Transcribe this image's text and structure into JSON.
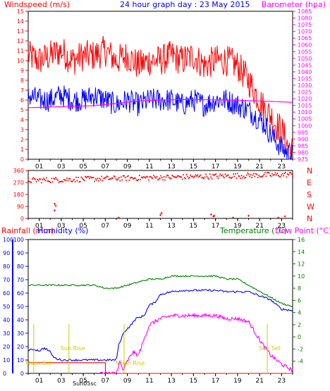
{
  "header": {
    "title": "24 hour graph day : 23 May 2015",
    "left_label": "Windspeed (m/s)",
    "right_label": "Barometer (hpa)"
  },
  "labels": {
    "rainfall": "Rainfall (mm)",
    "humidity": "Humidity (%)",
    "temperature": "Temperature (°C)",
    "dewpoint": "Dew Point (°C)",
    "sun_rise": "Sun Rise",
    "sun_set": "Sun Set",
    "moon_set": "Moon Set",
    "moon_rise": "Moon Rise",
    "sun_moon_overlap": "Sun05sc"
  },
  "colors": {
    "wind_gust": "#ff0000",
    "wind_avg": "#0000ff",
    "barometer": "#ff00ff",
    "direction": "#ff0000",
    "temperature": "#008000",
    "dewpoint": "#ff00ff",
    "humidity": "#0000ff",
    "rainfall": "#ff0000",
    "event_labels": "#cccc00"
  },
  "chart_data": [
    {
      "type": "line",
      "title": "24 hour graph day : 23 May 2015",
      "xlabel": "",
      "x_ticks": [
        "01",
        "03",
        "05",
        "07",
        "09",
        "11",
        "13",
        "15",
        "17",
        "19",
        "21",
        "23"
      ],
      "x_range_hours": [
        0,
        24
      ],
      "ylabel_left": "Windspeed (m/s)",
      "ylim_left": [
        0,
        15
      ],
      "y_ticks_left": [
        0,
        1,
        2,
        3,
        4,
        5,
        6,
        7,
        8,
        9,
        10,
        11,
        12,
        13,
        14,
        15
      ],
      "ylabel_right": "Barometer (hpa)",
      "ylim_right": [
        975,
        1085
      ],
      "y_ticks_right": [
        975,
        980,
        985,
        990,
        995,
        1000,
        1005,
        1010,
        1015,
        1020,
        1025,
        1030,
        1035,
        1040,
        1045,
        1050,
        1055,
        1060,
        1065,
        1070,
        1075,
        1080,
        1085
      ],
      "grid": false,
      "series": [
        {
          "key": "gust",
          "axis": "left",
          "x": [
            0,
            1,
            2,
            3,
            4,
            5,
            6,
            7,
            8,
            9,
            10,
            11,
            12,
            13,
            14,
            15,
            16,
            17,
            18,
            19,
            20,
            20.5,
            21,
            21.5,
            22,
            22.5,
            23,
            23.5,
            24
          ],
          "y": [
            10.5,
            10,
            10.5,
            11,
            10,
            10.5,
            10.5,
            11,
            10,
            10.5,
            9.5,
            10,
            10,
            10.5,
            10,
            10.5,
            9.5,
            10,
            10,
            9.5,
            8,
            7,
            6,
            5,
            4.5,
            3.5,
            3,
            1.5,
            0.8
          ]
        },
        {
          "key": "avg",
          "axis": "left",
          "x": [
            0,
            1,
            2,
            3,
            4,
            5,
            6,
            7,
            8,
            9,
            10,
            11,
            12,
            13,
            14,
            15,
            16,
            17,
            18,
            19,
            20,
            20.5,
            21,
            21.5,
            22,
            22.5,
            23,
            23.5,
            24
          ],
          "y": [
            6.5,
            6,
            6,
            6.5,
            6,
            6,
            6.5,
            6,
            5.5,
            6,
            5.5,
            6,
            6,
            6,
            5.5,
            6,
            5.5,
            6,
            6,
            5.5,
            5,
            4.5,
            4,
            3.5,
            2.5,
            1.8,
            1.2,
            0.6,
            0.4
          ]
        },
        {
          "key": "barometer",
          "axis": "right",
          "x": [
            0,
            2,
            4,
            6,
            8,
            10,
            12,
            14,
            15,
            16,
            18,
            20,
            22,
            24
          ],
          "y": [
            1013.3,
            1013.8,
            1014.3,
            1014.8,
            1016.5,
            1018.3,
            1019.0,
            1019.3,
            1019.3,
            1019.2,
            1019.0,
            1018.6,
            1018.0,
            1017.3
          ]
        }
      ]
    },
    {
      "type": "scatter",
      "title": "Wind direction",
      "x_ticks": [
        "01",
        "03",
        "05",
        "07",
        "09",
        "11",
        "13",
        "15",
        "17",
        "19",
        "21",
        "23"
      ],
      "x_range_hours": [
        0,
        24
      ],
      "ylim": [
        0,
        360
      ],
      "y_ticks": [
        0,
        90,
        180,
        270,
        360
      ],
      "compass_labels": [
        "N",
        "W",
        "S",
        "E",
        "N"
      ],
      "main_band": {
        "x_start": 0,
        "x_end": 24,
        "y_start": 285,
        "y_end": 330,
        "jitter": 20
      },
      "outliers": [
        {
          "x": 2.4,
          "y": 60
        },
        {
          "x": 2.5,
          "y": 95
        },
        {
          "x": 2.4,
          "y": 110
        },
        {
          "x": 8.2,
          "y": 5
        },
        {
          "x": 12.0,
          "y": 25
        },
        {
          "x": 12.1,
          "y": 40
        },
        {
          "x": 16.6,
          "y": 30
        },
        {
          "x": 16.8,
          "y": 15
        },
        {
          "x": 16.9,
          "y": 20
        },
        {
          "x": 18.6,
          "y": 5
        },
        {
          "x": 20.0,
          "y": 20
        },
        {
          "x": 22.7,
          "y": 5
        },
        {
          "x": 23.3,
          "y": 15
        }
      ]
    },
    {
      "type": "line",
      "title": "",
      "x_ticks": [
        "01",
        "03",
        "05",
        "07",
        "09",
        "11",
        "13",
        "15",
        "17",
        "19",
        "21",
        "23"
      ],
      "x_range_hours": [
        0,
        24
      ],
      "ylabel_left": "Rainfall (mm) / Humidity (%)",
      "ylim_left": [
        0,
        100
      ],
      "y_ticks_left": [
        0,
        10,
        20,
        30,
        40,
        50,
        60,
        70,
        80,
        90,
        100
      ],
      "ylabel_right": "Temperature (°C) / Dew Point (°C)",
      "ylim_right": [
        -6,
        16
      ],
      "y_ticks_right": [
        -4,
        -2,
        0,
        2,
        4,
        6,
        8,
        10,
        12,
        14,
        16
      ],
      "grid": false,
      "series": [
        {
          "key": "temperature",
          "axis": "right",
          "x": [
            0,
            1,
            2,
            3,
            4,
            5,
            6,
            7,
            8,
            9,
            10,
            11,
            12,
            13,
            14,
            15,
            16,
            17,
            18,
            19,
            20,
            21,
            22,
            23,
            24
          ],
          "y": [
            8.5,
            8.5,
            8.5,
            8.5,
            8.5,
            8.5,
            8.5,
            8.0,
            8.0,
            8.5,
            9.0,
            9.5,
            9.5,
            10.0,
            10.0,
            10.0,
            10.0,
            10.0,
            9.5,
            9.5,
            8.5,
            7.5,
            6.5,
            5.5,
            5.0
          ]
        },
        {
          "key": "dewpoint",
          "axis": "right",
          "x": [
            6.5,
            7,
            7.5,
            8,
            8.3,
            8.6,
            9,
            9.5,
            10,
            11,
            12,
            13,
            14,
            15,
            16,
            17,
            18,
            19,
            20,
            21,
            22,
            23,
            24
          ],
          "y": [
            -6,
            -6,
            -6,
            -6,
            -4,
            -5.5,
            -4,
            -2.5,
            -3,
            2,
            3,
            3.5,
            3.5,
            3.5,
            3.5,
            3.5,
            3,
            3,
            2.5,
            -0.5,
            -3,
            -4.5,
            -5.5
          ]
        },
        {
          "key": "humidity",
          "axis": "left",
          "x": [
            0,
            0.5,
            1,
            1.5,
            2,
            2.3,
            2.6,
            3,
            4,
            5,
            6,
            7,
            8,
            8.2,
            8.7,
            9.2,
            9.8,
            10.5,
            11,
            11.5,
            12,
            13,
            14,
            15,
            16,
            17,
            18,
            19,
            20,
            21,
            22,
            23,
            24
          ],
          "y": [
            17,
            18,
            17,
            19,
            16,
            12,
            11,
            10,
            10,
            10,
            10,
            10,
            10,
            21,
            31,
            35,
            41,
            43,
            51,
            53,
            59,
            61,
            62,
            62,
            62,
            62,
            61,
            61,
            61,
            58,
            55,
            48,
            47
          ]
        },
        {
          "key": "rainfall",
          "axis": "left",
          "x": [
            0,
            1,
            2,
            3,
            4,
            5,
            6,
            7,
            7.01,
            8,
            10,
            12,
            14,
            16,
            18,
            20,
            22,
            24
          ],
          "y": [
            8,
            8,
            8,
            8,
            8,
            8,
            8,
            8,
            0,
            0,
            0,
            0,
            0,
            0,
            0,
            0,
            0,
            0
          ]
        }
      ],
      "event_markers": [
        {
          "label_key": "sun_rise",
          "x": 3.7
        },
        {
          "label_key": "sun_set",
          "x": 21.7
        },
        {
          "label_key": "moon_set",
          "x": 0.5
        },
        {
          "label_key": "moon_rise",
          "x": 8.7
        }
      ]
    }
  ]
}
